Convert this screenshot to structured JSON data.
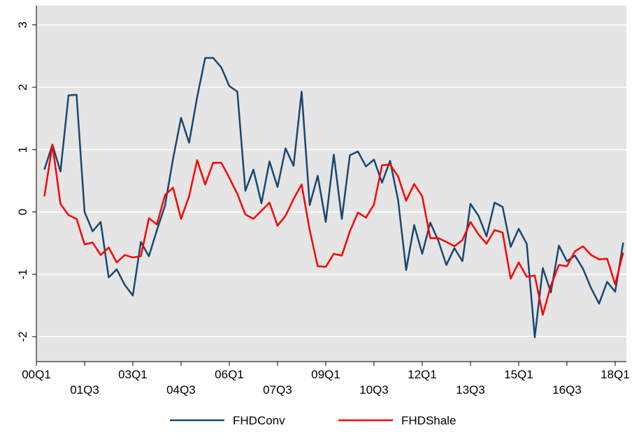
{
  "chart_data": {
    "type": "line",
    "x": [
      1,
      2,
      3,
      4,
      5,
      6,
      7,
      8,
      9,
      10,
      11,
      12,
      13,
      14,
      15,
      16,
      17,
      18,
      19,
      20,
      21,
      22,
      23,
      24,
      25,
      26,
      27,
      28,
      29,
      30,
      31,
      32,
      33,
      34,
      35,
      36,
      37,
      38,
      39,
      40,
      41,
      42,
      43,
      44,
      45,
      46,
      47,
      48,
      49,
      50,
      51,
      52,
      53,
      54,
      55,
      56,
      57,
      58,
      59,
      60,
      61,
      62,
      63,
      64,
      65,
      66,
      67,
      68,
      69,
      70,
      71,
      72,
      73
    ],
    "series": [
      {
        "name": "FHDConv",
        "color": "#1a476f",
        "values": [
          0.68,
          1.08,
          0.65,
          1.87,
          1.88,
          0.0,
          -0.31,
          -0.16,
          -1.05,
          -0.92,
          -1.17,
          -1.34,
          -0.48,
          -0.71,
          -0.29,
          0.1,
          0.85,
          1.51,
          1.11,
          1.84,
          2.47,
          2.47,
          2.32,
          2.02,
          1.93,
          0.34,
          0.68,
          0.14,
          0.81,
          0.4,
          1.02,
          0.74,
          1.93,
          0.11,
          0.58,
          -0.16,
          0.92,
          -0.11,
          0.91,
          0.97,
          0.73,
          0.84,
          0.47,
          0.82,
          0.19,
          -0.93,
          -0.21,
          -0.67,
          -0.17,
          -0.46,
          -0.85,
          -0.58,
          -0.79,
          0.13,
          -0.06,
          -0.39,
          0.15,
          0.08,
          -0.56,
          -0.27,
          -0.51,
          -2.01,
          -0.9,
          -1.29,
          -0.54,
          -0.79,
          -0.7,
          -0.91,
          -1.22,
          -1.47,
          -1.12,
          -1.28,
          -0.49
        ]
      },
      {
        "name": "FHDShale",
        "color": "#ff0000",
        "values": [
          0.25,
          1.08,
          0.13,
          -0.05,
          -0.11,
          -0.52,
          -0.49,
          -0.69,
          -0.57,
          -0.81,
          -0.69,
          -0.73,
          -0.71,
          -0.1,
          -0.2,
          0.27,
          0.39,
          -0.11,
          0.25,
          0.83,
          0.44,
          0.79,
          0.79,
          0.55,
          0.29,
          -0.04,
          -0.11,
          0.02,
          0.15,
          -0.22,
          -0.06,
          0.21,
          0.44,
          -0.29,
          -0.87,
          -0.88,
          -0.67,
          -0.7,
          -0.31,
          -0.01,
          -0.09,
          0.12,
          0.75,
          0.76,
          0.57,
          0.18,
          0.45,
          0.25,
          -0.42,
          -0.42,
          -0.48,
          -0.55,
          -0.45,
          -0.16,
          -0.36,
          -0.51,
          -0.29,
          -0.33,
          -1.07,
          -0.81,
          -1.04,
          -1.02,
          -1.65,
          -1.18,
          -0.85,
          -0.87,
          -0.63,
          -0.55,
          -0.69,
          -0.76,
          -0.75,
          -1.16,
          -0.65
        ]
      }
    ],
    "xlim": [
      0,
      73.4
    ],
    "xticks": [
      {
        "value": 0,
        "label": "00Q1"
      },
      {
        "value": 6,
        "label": "01Q3"
      },
      {
        "value": 12,
        "label": "03Q1"
      },
      {
        "value": 18,
        "label": "04Q3"
      },
      {
        "value": 24,
        "label": "06Q1"
      },
      {
        "value": 30,
        "label": "07Q3"
      },
      {
        "value": 36,
        "label": "09Q1"
      },
      {
        "value": 42,
        "label": "10Q3"
      },
      {
        "value": 48,
        "label": "12Q1"
      },
      {
        "value": 54,
        "label": "13Q3"
      },
      {
        "value": 60,
        "label": "15Q1"
      },
      {
        "value": 66,
        "label": "16Q3"
      },
      {
        "value": 72,
        "label": "18Q1"
      }
    ],
    "ylim": [
      -2.4,
      3.31
    ],
    "yticks": [
      -2,
      -1,
      0,
      1,
      2,
      3
    ],
    "grid": true
  }
}
